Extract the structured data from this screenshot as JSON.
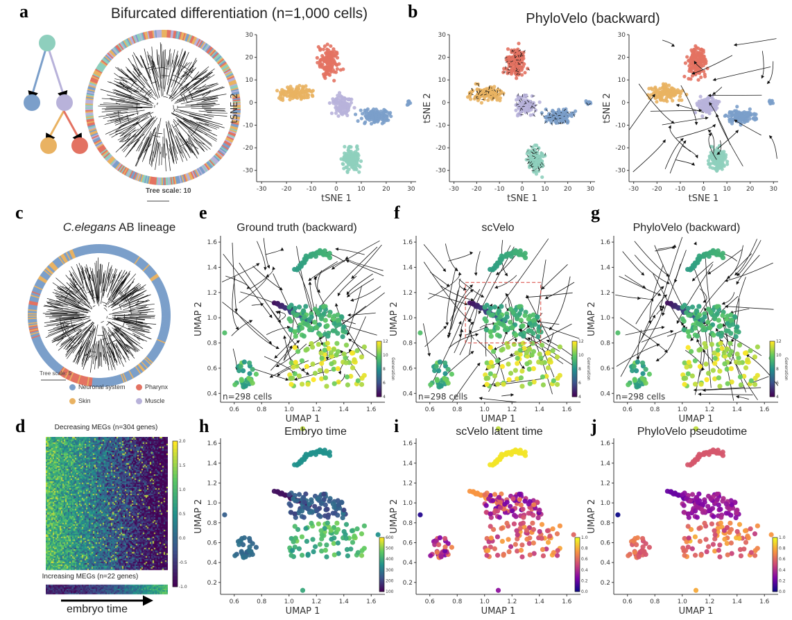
{
  "colors": {
    "teal": "#8ecfbd",
    "blue": "#7b9fca",
    "lavender": "#b8b2da",
    "orange": "#e9b262",
    "red": "#e37262"
  },
  "panel_a": {
    "letter": "a",
    "title": "Bifurcated differentiation (n=1,000 cells)",
    "tree_scale": "Tree scale: 10",
    "xlabel": "tSNE 1",
    "ylabel": "tSNE 2",
    "xticks": [
      "-30",
      "-20",
      "-10",
      "0",
      "10",
      "20",
      "30"
    ],
    "yticks": [
      "-30",
      "-20",
      "-10",
      "0",
      "10",
      "20",
      "30"
    ]
  },
  "panel_b": {
    "letter": "b",
    "title": "PhyloVelo (backward)",
    "xlabel": "tSNE 1",
    "ylabel": "tSNE 2",
    "xticks": [
      "-30",
      "-20",
      "-10",
      "0",
      "10",
      "20",
      "30"
    ],
    "yticks": [
      "-30",
      "-20",
      "-10",
      "0",
      "10",
      "20",
      "30"
    ]
  },
  "panel_c": {
    "letter": "c",
    "title_italic": "C.elegans",
    "title_rest": " AB lineage",
    "tree_scale": "Tree scale: 5",
    "legend": [
      {
        "label": "Neuronal system",
        "color": "#7b9fca"
      },
      {
        "label": "Pharynx",
        "color": "#e37262"
      },
      {
        "label": "Skin",
        "color": "#e9b262"
      },
      {
        "label": "Muscle",
        "color": "#b8b2da"
      }
    ]
  },
  "panel_d": {
    "letter": "d",
    "top_title": "Decreasing MEGs (n=304 genes)",
    "bottom_title": "Increasing MEGs (n=22 genes)",
    "colorbar_ticks": [
      "2.0",
      "1.5",
      "1.0",
      "0.5",
      "0.0",
      "-0.5",
      "-1.0"
    ],
    "arrow_label": "embryo time"
  },
  "umap": {
    "xlabel": "UMAP 1",
    "ylabel": "UMAP 2",
    "xticks": [
      "0.6",
      "0.8",
      "1.0",
      "1.2",
      "1.4",
      "1.6"
    ],
    "yticks_top": [
      "0.4",
      "0.6",
      "0.8",
      "1.0",
      "1.2",
      "1.4",
      "1.6"
    ],
    "yticks_bottom": [
      "0.2",
      "0.4",
      "0.6",
      "0.8",
      "1.0",
      "1.2",
      "1.4",
      "1.6"
    ],
    "n_cells": "n=298 cells",
    "generation_label": "Generation",
    "generation_ticks": [
      "4",
      "6",
      "8",
      "10",
      "12"
    ]
  },
  "panel_e": {
    "letter": "e",
    "title": "Ground truth (backward)"
  },
  "panel_f": {
    "letter": "f",
    "title": "scVelo",
    "highlight_box_color": "#d9423a"
  },
  "panel_g": {
    "letter": "g",
    "title": "PhyloVelo (backward)"
  },
  "panel_h": {
    "letter": "h",
    "title": "Embryo time",
    "colorbar_ticks": [
      "100",
      "200",
      "300",
      "400",
      "500",
      "600"
    ],
    "colormap": "viridis"
  },
  "panel_i": {
    "letter": "i",
    "title": "scVelo latent time",
    "colorbar_ticks": [
      "0.0",
      "0.2",
      "0.4",
      "0.6",
      "0.8",
      "1.0"
    ],
    "colormap": "plasma"
  },
  "panel_j": {
    "letter": "j",
    "title": "PhyloVelo pseudotime",
    "colorbar_ticks": [
      "0.0",
      "0.2",
      "0.4",
      "0.6",
      "0.8",
      "1.0"
    ],
    "colormap": "plasma"
  }
}
